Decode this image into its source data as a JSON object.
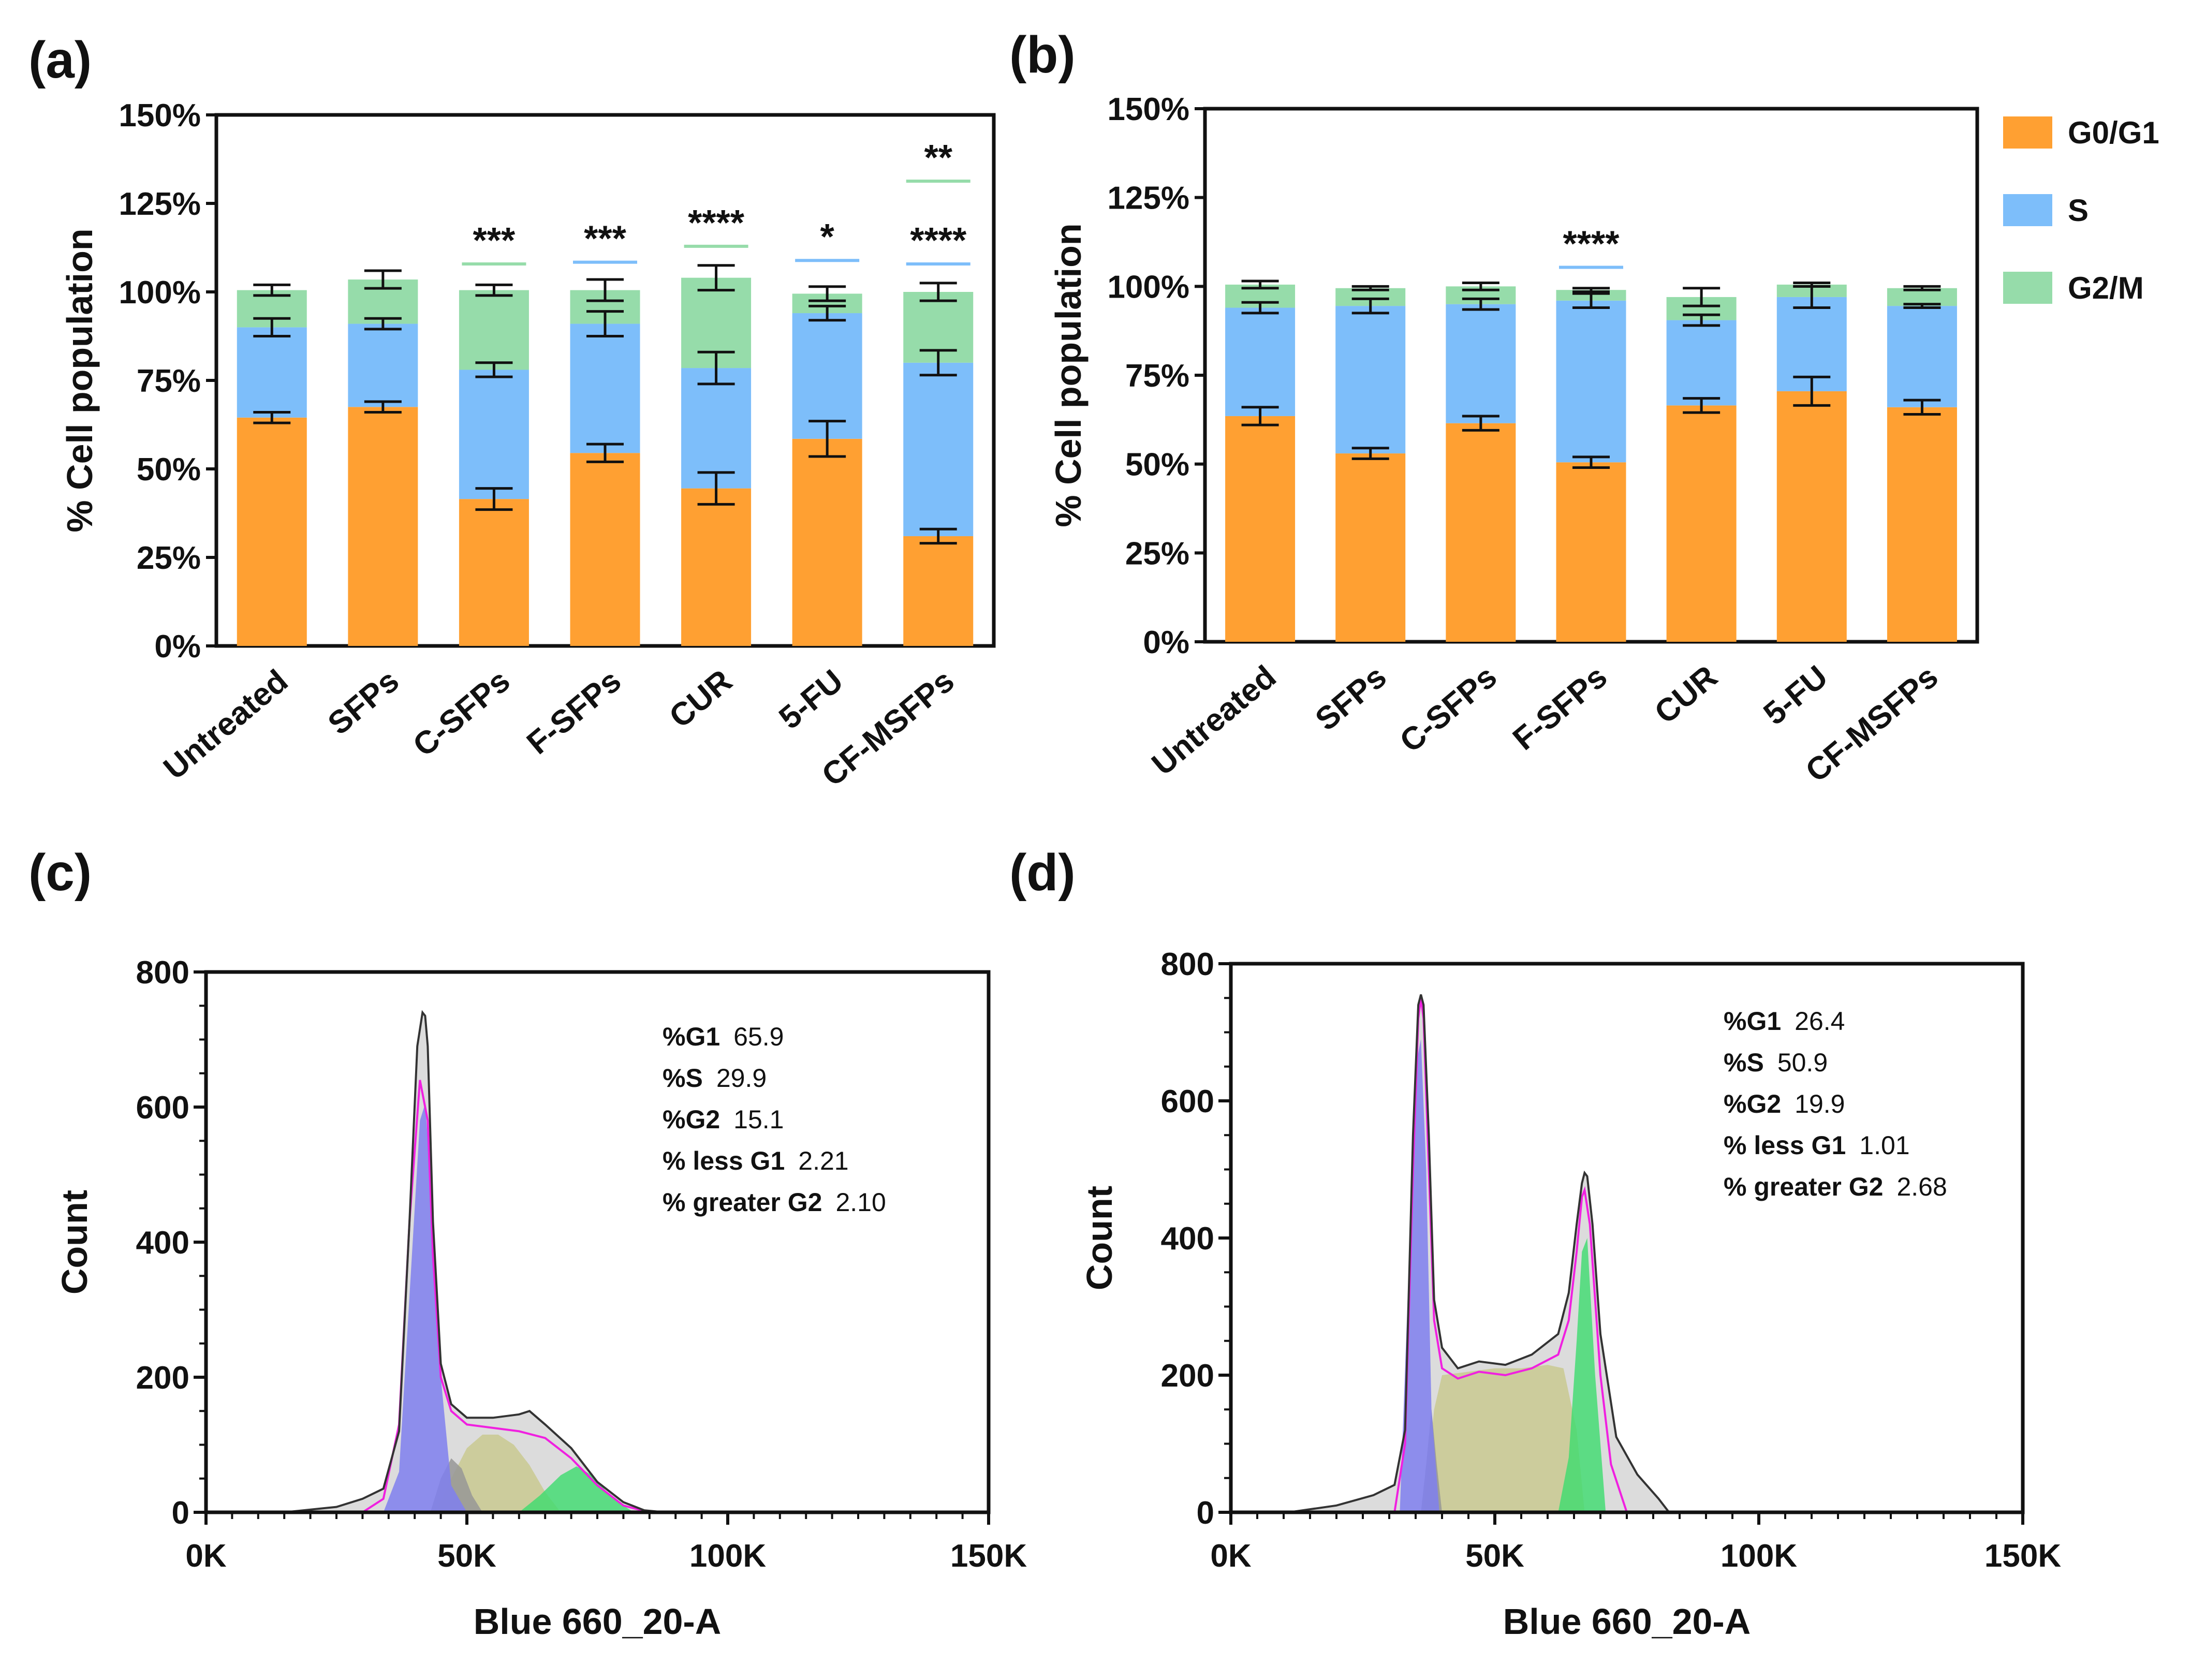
{
  "colors": {
    "g0g1": "#FFA032",
    "s": "#7DBEFA",
    "g2m": "#96DCAA",
    "frame": "#111111"
  },
  "panels": {
    "a": "(a)",
    "b": "(b)",
    "c": "(c)",
    "d": "(d)"
  },
  "chart_data": [
    {
      "panel": "a",
      "type": "bar",
      "stacked": true,
      "ylabel": "% Cell population",
      "ylim": [
        0,
        150
      ],
      "yticks": [
        "0%",
        "25%",
        "50%",
        "75%",
        "100%",
        "125%",
        "150%"
      ],
      "categories": [
        "Untreated",
        "SFPs",
        "C-SFPs",
        "F-SFPs",
        "CUR",
        "5-FU",
        "CF-MSFPs"
      ],
      "series": [
        {
          "name": "G0/G1",
          "values": [
            64.5,
            67.5,
            41.5,
            54.5,
            44.5,
            58.5,
            31.0
          ],
          "errors": [
            1.5,
            1.5,
            3.0,
            2.5,
            4.5,
            5.0,
            2.0
          ]
        },
        {
          "name": "S",
          "values": [
            25.5,
            23.5,
            36.5,
            36.5,
            34.0,
            35.5,
            49.0
          ],
          "errors": [
            2.5,
            1.5,
            2.0,
            3.5,
            4.5,
            2.0,
            3.5
          ]
        },
        {
          "name": "G2/M",
          "values": [
            10.5,
            12.5,
            22.5,
            9.5,
            25.5,
            5.5,
            20.0
          ],
          "errors": [
            1.5,
            2.5,
            1.5,
            3.0,
            3.5,
            2.0,
            2.5
          ]
        }
      ],
      "significance": [
        {
          "category": "C-SFPs",
          "label": "***",
          "line_series": "G2/M"
        },
        {
          "category": "F-SFPs",
          "label": "***",
          "line_series": "S"
        },
        {
          "category": "CUR",
          "label": "****",
          "line_series": "G2/M"
        },
        {
          "category": "5-FU",
          "label": "*",
          "line_series": "S"
        },
        {
          "category": "CF-MSFPs",
          "label": "****",
          "line_series": "S"
        },
        {
          "category": "CF-MSFPs",
          "label": "**",
          "line_series": "G2/M"
        }
      ]
    },
    {
      "panel": "b",
      "type": "bar",
      "stacked": true,
      "ylabel": "% Cell population",
      "ylim": [
        0,
        150
      ],
      "yticks": [
        "0%",
        "25%",
        "50%",
        "75%",
        "100%",
        "125%",
        "150%"
      ],
      "categories": [
        "Untreated",
        "SFPs",
        "C-SFPs",
        "F-SFPs",
        "CUR",
        "5-FU",
        "CF-MSFPs"
      ],
      "series": [
        {
          "name": "G0/G1",
          "values": [
            63.5,
            53.0,
            61.5,
            50.5,
            66.5,
            70.5,
            66.0
          ],
          "errors": [
            2.5,
            1.5,
            2.0,
            1.5,
            2.0,
            4.0,
            2.0
          ]
        },
        {
          "name": "S",
          "values": [
            30.5,
            41.5,
            33.5,
            45.5,
            24.0,
            26.5,
            28.5
          ],
          "errors": [
            1.5,
            2.0,
            1.5,
            2.0,
            1.5,
            3.0,
            0.5
          ]
        },
        {
          "name": "G2/M",
          "values": [
            6.5,
            5.0,
            5.0,
            3.0,
            6.5,
            3.5,
            5.0
          ],
          "errors": [
            1.0,
            0.5,
            1.0,
            0.5,
            2.5,
            0.5,
            0.5
          ]
        }
      ],
      "legend": [
        "G0/G1",
        "S",
        "G2/M"
      ],
      "significance": [
        {
          "category": "F-SFPs",
          "label": "****",
          "line_series": "S"
        }
      ]
    },
    {
      "panel": "c",
      "type": "area",
      "xlabel": "Blue 660_20-A",
      "ylabel": "Count",
      "xlim": [
        0,
        150000
      ],
      "ylim": [
        0,
        800
      ],
      "xticks": [
        "0K",
        "50K",
        "100K",
        "150K"
      ],
      "yticks": [
        "0",
        "200",
        "400",
        "600",
        "800"
      ],
      "stats": [
        {
          "name": "%G1",
          "value": "65.9"
        },
        {
          "name": "%S",
          "value": "29.9"
        },
        {
          "name": "%G2",
          "value": "15.1"
        },
        {
          "name": "% less G1",
          "value": "2.21"
        },
        {
          "name": "% greater G2",
          "value": "2.10"
        }
      ],
      "series": [
        {
          "name": "data",
          "x": [
            15000,
            25000,
            30000,
            34000,
            37000,
            39000,
            40500,
            41500,
            42000,
            42500,
            43500,
            45000,
            47000,
            50000,
            55000,
            60000,
            62000,
            65000,
            70000,
            75000,
            80000,
            84000,
            88000
          ],
          "y": [
            0,
            8,
            20,
            35,
            120,
            430,
            690,
            740,
            735,
            690,
            430,
            220,
            160,
            140,
            140,
            145,
            150,
            130,
            95,
            45,
            15,
            3,
            0
          ]
        },
        {
          "name": "fit",
          "x": [
            30000,
            34000,
            37000,
            39000,
            41000,
            42500,
            43500,
            45000,
            47000,
            50000,
            55000,
            60000,
            65000,
            70000,
            75000,
            80000,
            85000
          ],
          "y": [
            0,
            20,
            130,
            430,
            640,
            580,
            380,
            200,
            150,
            130,
            125,
            120,
            110,
            80,
            40,
            10,
            0
          ]
        },
        {
          "name": "G1",
          "x": [
            34000,
            37000,
            39000,
            41000,
            42000,
            43000,
            45000,
            47000,
            50000
          ],
          "y": [
            0,
            60,
            320,
            580,
            605,
            500,
            200,
            40,
            0
          ]
        },
        {
          "name": "S",
          "x": [
            44000,
            47000,
            50000,
            53000,
            56000,
            59000,
            62000,
            65000,
            68000
          ],
          "y": [
            0,
            50,
            95,
            115,
            115,
            100,
            70,
            30,
            0
          ]
        },
        {
          "name": "G2",
          "x": [
            60000,
            64000,
            68000,
            71000,
            74000,
            78000,
            82000
          ],
          "y": [
            0,
            25,
            55,
            68,
            55,
            20,
            0
          ]
        },
        {
          "name": "less G1",
          "x": [
            43000,
            45000,
            47000,
            49000,
            51000,
            53000
          ],
          "y": [
            0,
            50,
            80,
            65,
            25,
            0
          ]
        }
      ]
    },
    {
      "panel": "d",
      "type": "area",
      "xlabel": "Blue 660_20-A",
      "ylabel": "Count",
      "xlim": [
        0,
        150000
      ],
      "ylim": [
        0,
        800
      ],
      "xticks": [
        "0K",
        "50K",
        "100K",
        "150K"
      ],
      "yticks": [
        "0",
        "200",
        "400",
        "600",
        "800"
      ],
      "stats": [
        {
          "name": "%G1",
          "value": "26.4"
        },
        {
          "name": "%S",
          "value": "50.9"
        },
        {
          "name": "%G2",
          "value": "19.9"
        },
        {
          "name": "% less G1",
          "value": "1.01"
        },
        {
          "name": "% greater G2",
          "value": "2.68"
        }
      ],
      "series": [
        {
          "name": "data",
          "x": [
            11000,
            20000,
            27000,
            31000,
            33000,
            34500,
            35500,
            36000,
            36500,
            37500,
            38500,
            40000,
            43000,
            47000,
            52000,
            57000,
            62000,
            64000,
            65500,
            66500,
            67000,
            67500,
            68500,
            70000,
            73000,
            77000,
            81000,
            83000
          ],
          "y": [
            0,
            10,
            25,
            40,
            120,
            550,
            740,
            755,
            740,
            550,
            310,
            240,
            210,
            220,
            215,
            230,
            260,
            320,
            420,
            480,
            495,
            490,
            420,
            260,
            110,
            55,
            20,
            0
          ]
        },
        {
          "name": "fit",
          "x": [
            31000,
            33000,
            34500,
            35500,
            36000,
            36500,
            37500,
            38500,
            40000,
            43000,
            47000,
            52000,
            57000,
            62000,
            64000,
            65500,
            66500,
            67000,
            68000,
            70000,
            72000,
            75000
          ],
          "y": [
            0,
            100,
            500,
            720,
            750,
            720,
            500,
            280,
            210,
            195,
            205,
            200,
            210,
            230,
            280,
            380,
            460,
            470,
            420,
            200,
            70,
            0
          ]
        },
        {
          "name": "G1",
          "x": [
            32000,
            34000,
            35000,
            36000,
            37000,
            38000,
            39500
          ],
          "y": [
            0,
            420,
            650,
            690,
            500,
            150,
            0
          ]
        },
        {
          "name": "S",
          "x": [
            36500,
            38500,
            40000,
            45000,
            50000,
            55000,
            60000,
            63000,
            65500,
            67000
          ],
          "y": [
            0,
            150,
            200,
            205,
            210,
            210,
            215,
            210,
            120,
            0
          ]
        },
        {
          "name": "G2",
          "x": [
            62000,
            64000,
            65500,
            66500,
            67500,
            69000,
            71000
          ],
          "y": [
            0,
            80,
            250,
            380,
            400,
            200,
            0
          ]
        },
        {
          "name": "less G1",
          "x": [
            36000,
            37000,
            38000,
            39000,
            40000
          ],
          "y": [
            0,
            70,
            150,
            70,
            0
          ]
        }
      ]
    }
  ]
}
